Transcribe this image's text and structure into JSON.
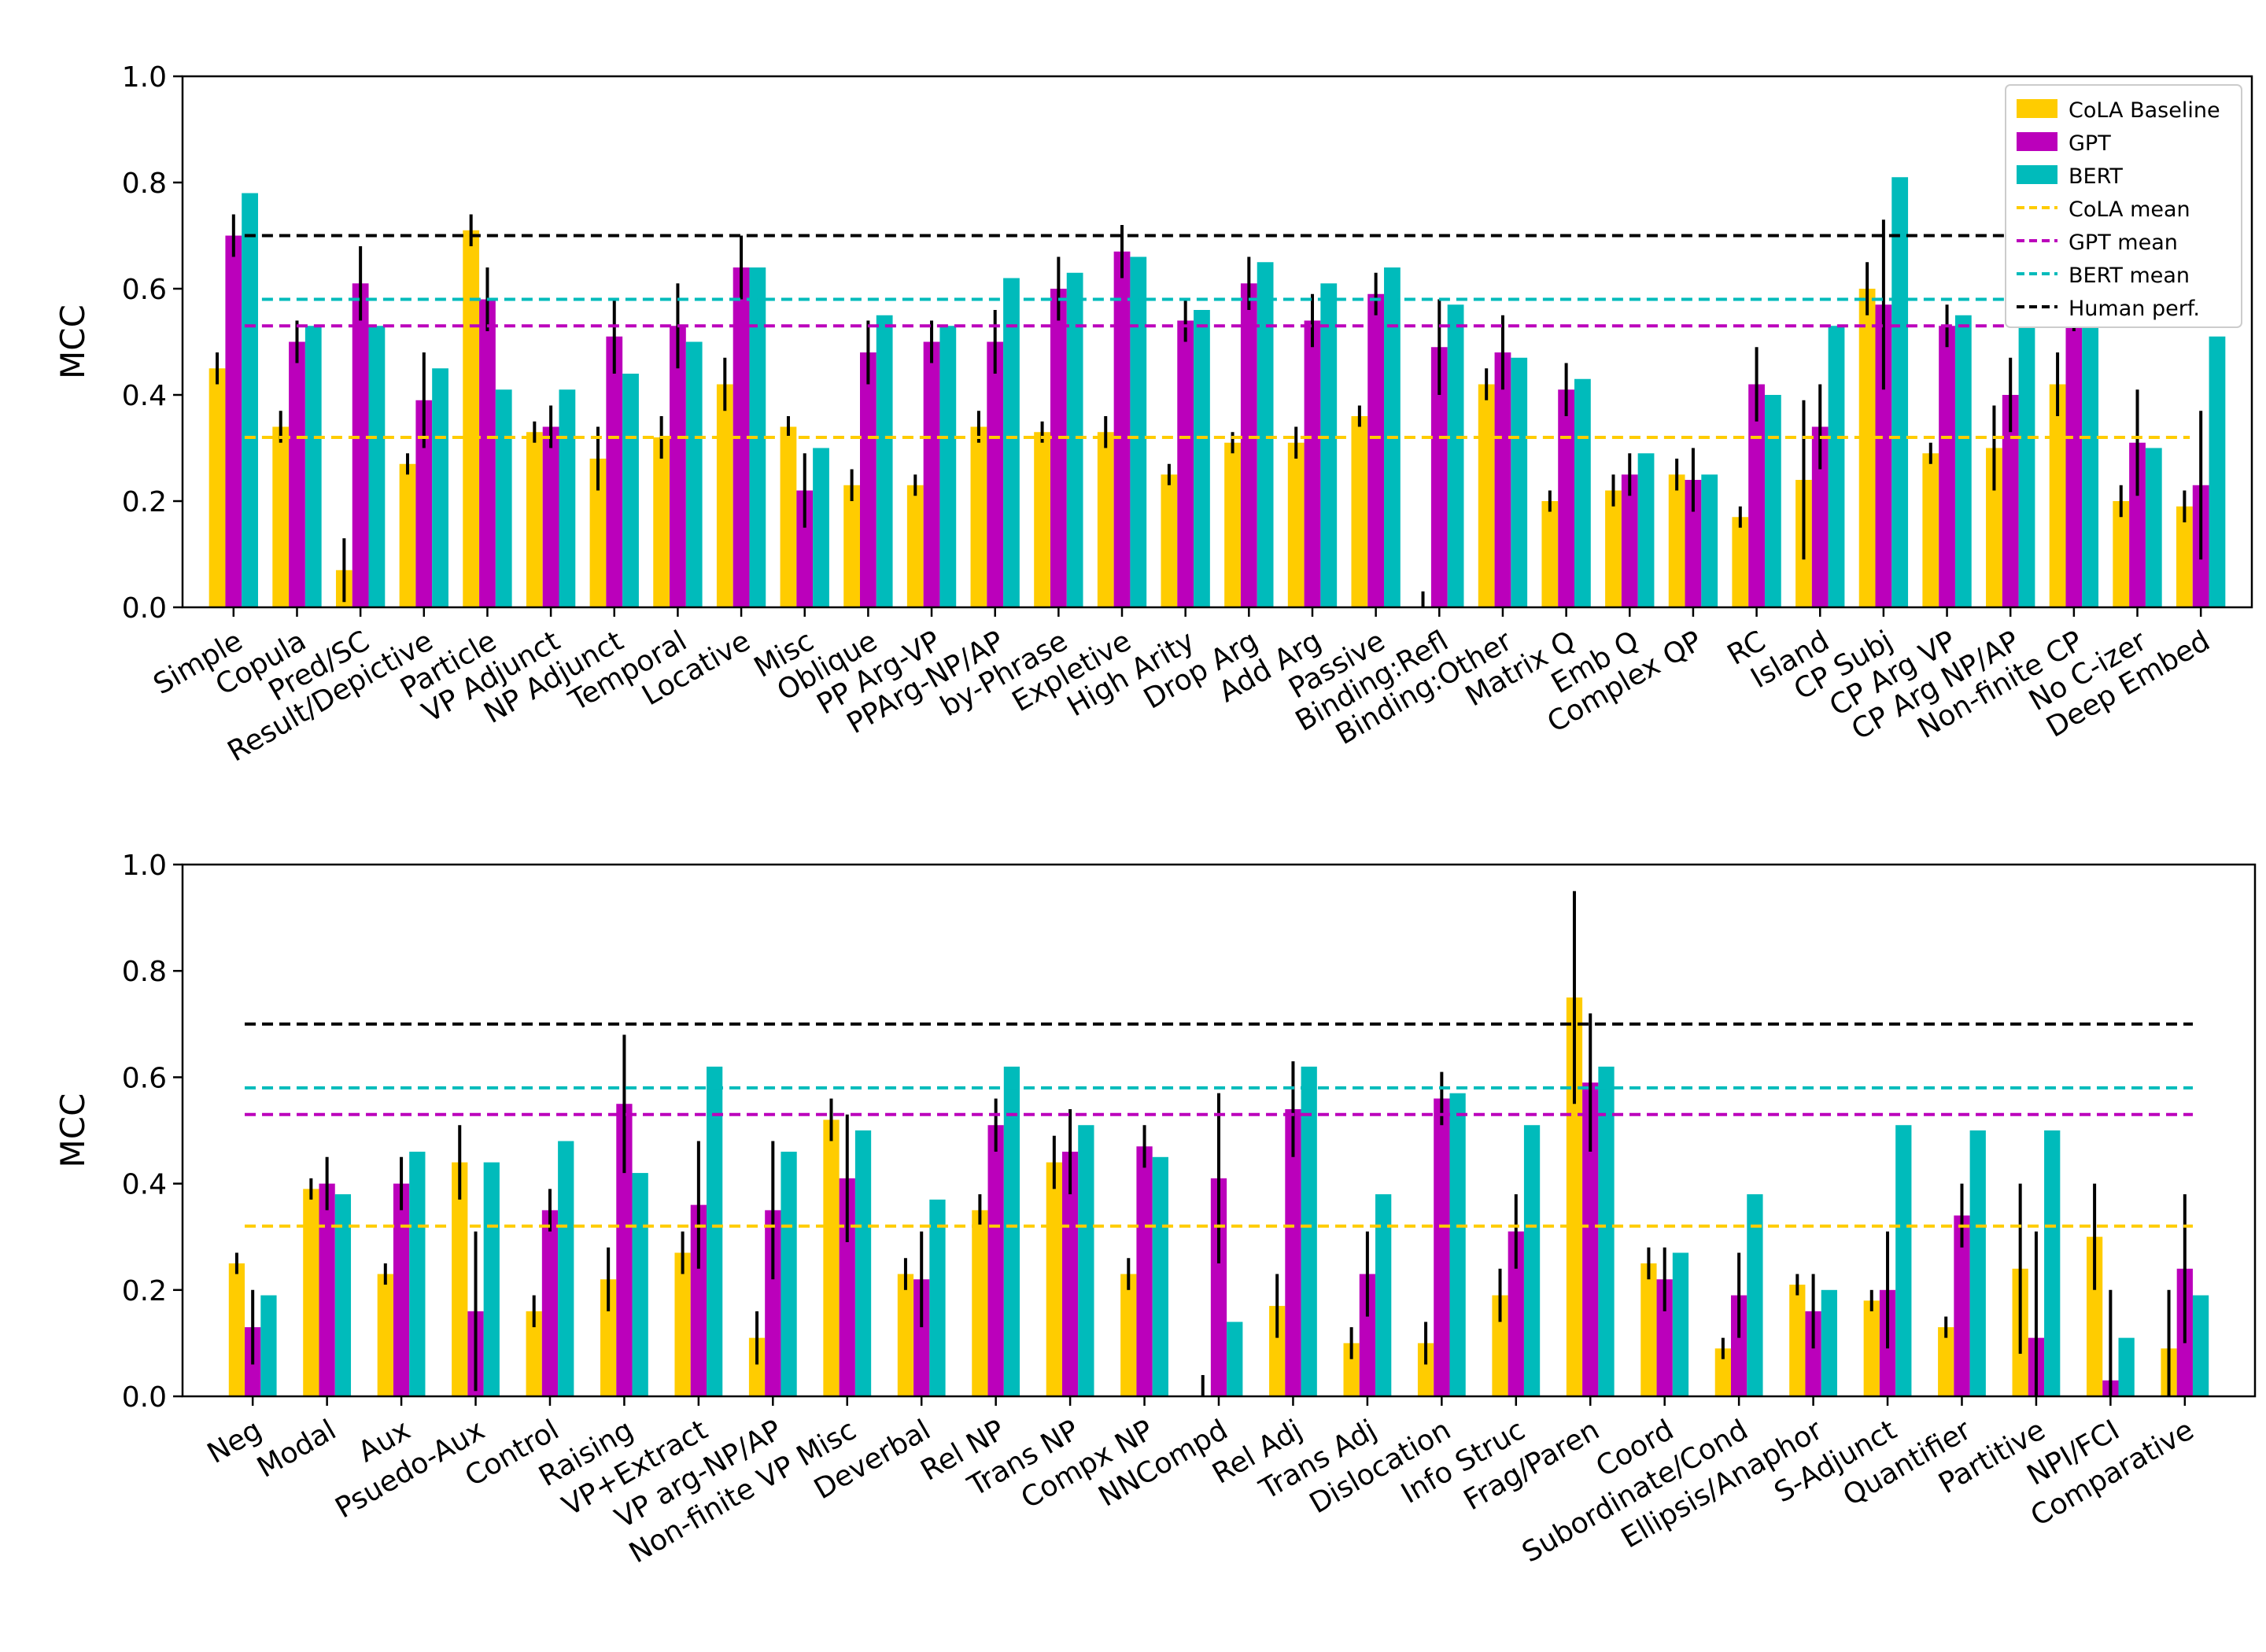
{
  "chart_data": [
    {
      "type": "bar",
      "title": "",
      "xlabel": "",
      "ylabel": "MCC",
      "ylim": [
        0,
        1.0
      ],
      "yticks": [
        "0.0",
        "0.2",
        "0.4",
        "0.6",
        "0.8",
        "1.0"
      ],
      "grid": false,
      "legend_position": "top-right",
      "categories": [
        "Simple",
        "Copula",
        "Pred/SC",
        "Result/Depictive",
        "Particle",
        "VP Adjunct",
        "NP Adjunct",
        "Temporal",
        "Locative",
        "Misc",
        "Oblique",
        "PP Arg-VP",
        "PPArg-NP/AP",
        "by-Phrase",
        "Expletive",
        "High Arity",
        "Drop Arg",
        "Add Arg",
        "Passive",
        "Binding:Refl",
        "Binding:Other",
        "Matrix Q",
        "Emb Q",
        "Complex QP",
        "RC",
        "Island",
        "CP Subj",
        "CP Arg VP",
        "CP Arg NP/AP",
        "Non-finite CP",
        "No C-izer",
        "Deep Embed"
      ],
      "series": [
        {
          "name": "CoLA Baseline",
          "color": "#FFCC00",
          "values": [
            0.45,
            0.34,
            0.07,
            0.27,
            0.71,
            0.33,
            0.28,
            0.32,
            0.42,
            0.34,
            0.23,
            0.23,
            0.34,
            0.33,
            0.33,
            0.25,
            0.31,
            0.31,
            0.36,
            0.0,
            0.42,
            0.2,
            0.22,
            0.25,
            0.17,
            0.24,
            0.6,
            0.29,
            0.3,
            0.42,
            0.2,
            0.19
          ],
          "errors": [
            0.03,
            0.03,
            0.06,
            0.02,
            0.03,
            0.02,
            0.06,
            0.04,
            0.05,
            0.02,
            0.03,
            0.02,
            0.03,
            0.02,
            0.03,
            0.02,
            0.02,
            0.03,
            0.02,
            0.03,
            0.03,
            0.02,
            0.03,
            0.03,
            0.02,
            0.15,
            0.05,
            0.02,
            0.08,
            0.06,
            0.03,
            0.03
          ]
        },
        {
          "name": "GPT",
          "color": "#BB00BB",
          "values": [
            0.7,
            0.5,
            0.61,
            0.39,
            0.58,
            0.34,
            0.51,
            0.53,
            0.64,
            0.22,
            0.48,
            0.5,
            0.5,
            0.6,
            0.67,
            0.54,
            0.61,
            0.54,
            0.59,
            0.49,
            0.48,
            0.41,
            0.25,
            0.24,
            0.42,
            0.34,
            0.57,
            0.53,
            0.4,
            0.6,
            0.31,
            0.23
          ],
          "errors": [
            0.04,
            0.04,
            0.07,
            0.09,
            0.06,
            0.04,
            0.07,
            0.08,
            0.06,
            0.07,
            0.06,
            0.04,
            0.06,
            0.06,
            0.05,
            0.04,
            0.05,
            0.05,
            0.04,
            0.09,
            0.07,
            0.05,
            0.04,
            0.06,
            0.07,
            0.08,
            0.16,
            0.04,
            0.07,
            0.08,
            0.1,
            0.14
          ]
        },
        {
          "name": "BERT",
          "color": "#00BBBB",
          "values": [
            0.78,
            0.53,
            0.53,
            0.45,
            0.41,
            0.41,
            0.44,
            0.5,
            0.64,
            0.3,
            0.55,
            0.53,
            0.62,
            0.63,
            0.66,
            0.56,
            0.65,
            0.61,
            0.64,
            0.57,
            0.47,
            0.43,
            0.29,
            0.25,
            0.4,
            0.53,
            0.81,
            0.55,
            0.56,
            0.71,
            0.3,
            0.51
          ]
        },
        {
          "name": "CoLA mean",
          "color": "#FFCC00",
          "line": 0.32,
          "dashed": true
        },
        {
          "name": "GPT mean",
          "color": "#BB00BB",
          "line": 0.53,
          "dashed": true
        },
        {
          "name": "BERT mean",
          "color": "#00BBBB",
          "line": 0.58,
          "dashed": true
        },
        {
          "name": "Human perf.",
          "color": "#000000",
          "line": 0.7,
          "dashed": true
        }
      ]
    },
    {
      "type": "bar",
      "title": "",
      "xlabel": "",
      "ylabel": "MCC",
      "ylim": [
        0,
        1.0
      ],
      "yticks": [
        "0.0",
        "0.2",
        "0.4",
        "0.6",
        "0.8",
        "1.0"
      ],
      "grid": false,
      "categories": [
        "Neg",
        "Modal",
        "Aux",
        "Psuedo-Aux",
        "Control",
        "Raising",
        "VP+Extract",
        "VP arg-NP/AP",
        "Non-finite VP Misc",
        "Deverbal",
        "Rel NP",
        "Trans NP",
        "Compx NP",
        "NNCompd",
        "Rel Adj",
        "Trans Adj",
        "Dislocation",
        "Info Struc",
        "Frag/Paren",
        "Coord",
        "Subordinate/Cond",
        "Ellipsis/Anaphor",
        "S-Adjunct",
        "Quantifier",
        "Partitive",
        "NPI/FCI",
        "Comparative"
      ],
      "series": [
        {
          "name": "CoLA Baseline",
          "color": "#FFCC00",
          "values": [
            0.25,
            0.39,
            0.23,
            0.44,
            0.16,
            0.22,
            0.27,
            0.11,
            0.52,
            0.23,
            0.35,
            0.44,
            0.23,
            0.0,
            0.17,
            0.1,
            0.1,
            0.19,
            0.75,
            0.25,
            0.09,
            0.21,
            0.18,
            0.13,
            0.24,
            0.3,
            0.09
          ],
          "errors": [
            0.02,
            0.02,
            0.02,
            0.07,
            0.03,
            0.06,
            0.04,
            0.05,
            0.04,
            0.03,
            0.03,
            0.05,
            0.03,
            0.04,
            0.06,
            0.03,
            0.04,
            0.05,
            0.2,
            0.03,
            0.02,
            0.02,
            0.02,
            0.02,
            0.16,
            0.1,
            0.11
          ]
        },
        {
          "name": "GPT",
          "color": "#BB00BB",
          "values": [
            0.13,
            0.4,
            0.4,
            0.16,
            0.35,
            0.55,
            0.36,
            0.35,
            0.41,
            0.22,
            0.51,
            0.46,
            0.47,
            0.41,
            0.54,
            0.23,
            0.56,
            0.31,
            0.59,
            0.22,
            0.19,
            0.16,
            0.2,
            0.34,
            0.11,
            0.03,
            0.24
          ],
          "errors": [
            0.07,
            0.05,
            0.05,
            0.15,
            0.04,
            0.13,
            0.12,
            0.13,
            0.12,
            0.09,
            0.05,
            0.08,
            0.04,
            0.16,
            0.09,
            0.08,
            0.05,
            0.07,
            0.13,
            0.06,
            0.08,
            0.07,
            0.11,
            0.06,
            0.2,
            0.17,
            0.14
          ]
        },
        {
          "name": "BERT",
          "color": "#00BBBB",
          "values": [
            0.19,
            0.38,
            0.46,
            0.44,
            0.48,
            0.42,
            0.62,
            0.46,
            0.5,
            0.37,
            0.62,
            0.51,
            0.45,
            0.14,
            0.62,
            0.38,
            0.57,
            0.51,
            0.62,
            0.27,
            0.38,
            0.2,
            0.51,
            0.5,
            0.5,
            0.11,
            0.19
          ]
        },
        {
          "name": "CoLA mean",
          "color": "#FFCC00",
          "line": 0.32,
          "dashed": true
        },
        {
          "name": "GPT mean",
          "color": "#BB00BB",
          "line": 0.53,
          "dashed": true
        },
        {
          "name": "BERT mean",
          "color": "#00BBBB",
          "line": 0.58,
          "dashed": true
        },
        {
          "name": "Human perf.",
          "color": "#000000",
          "line": 0.7,
          "dashed": true
        }
      ]
    }
  ]
}
